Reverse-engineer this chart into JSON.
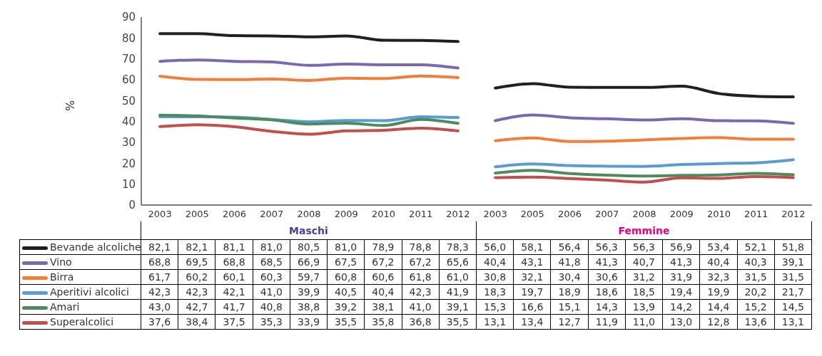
{
  "chart_data": {
    "type": "line",
    "ylabel": "%",
    "categories": [
      "2003",
      "2005",
      "2006",
      "2007",
      "2008",
      "2009",
      "2010",
      "2011",
      "2012",
      "2003",
      "2005",
      "2006",
      "2007",
      "2008",
      "2009",
      "2010",
      "2011",
      "2012"
    ],
    "annotations": [
      "Maschi",
      "Femmine"
    ],
    "ylim": [
      0,
      90
    ],
    "yticks": [
      0,
      10,
      20,
      30,
      40,
      50,
      60,
      70,
      80,
      90
    ],
    "grid": false,
    "legend": "bottom",
    "marker": "none",
    "line_style": "solid",
    "series": [
      {
        "name": "Bevande alcoliche",
        "color": "#231f20",
        "values": [
          82.1,
          82.1,
          81.1,
          81.0,
          80.5,
          81.0,
          78.9,
          78.8,
          78.3,
          56.0,
          58.1,
          56.4,
          56.3,
          56.3,
          56.9,
          53.4,
          52.1,
          51.8
        ],
        "value_labels": [
          "82,1",
          "82,1",
          "81,1",
          "81,0",
          "80,5",
          "81,0",
          "78,9",
          "78,8",
          "78,3",
          "56,0",
          "58,1",
          "56,4",
          "56,3",
          "56,3",
          "56,9",
          "53,4",
          "52,1",
          "51,8"
        ]
      },
      {
        "name": "Vino",
        "color": "#7b68b0",
        "values": [
          68.8,
          69.5,
          68.8,
          68.5,
          66.9,
          67.5,
          67.2,
          67.2,
          65.6,
          40.4,
          43.1,
          41.8,
          41.3,
          40.7,
          41.3,
          40.4,
          40.3,
          39.1
        ],
        "value_labels": [
          "68,8",
          "69,5",
          "68,8",
          "68,5",
          "66,9",
          "67,5",
          "67,2",
          "67,2",
          "65,6",
          "40,4",
          "43,1",
          "41,8",
          "41,3",
          "40,7",
          "41,3",
          "40,4",
          "40,3",
          "39,1"
        ]
      },
      {
        "name": "Birra",
        "color": "#f07f3c",
        "values": [
          61.7,
          60.2,
          60.1,
          60.3,
          59.7,
          60.8,
          60.6,
          61.8,
          61.0,
          30.8,
          32.1,
          30.4,
          30.6,
          31.2,
          31.9,
          32.3,
          31.5,
          31.5
        ],
        "value_labels": [
          "61,7",
          "60,2",
          "60,1",
          "60,3",
          "59,7",
          "60,8",
          "60,6",
          "61,8",
          "61,0",
          "30,8",
          "32,1",
          "30,4",
          "30,6",
          "31,2",
          "31,9",
          "32,3",
          "31,5",
          "31,5"
        ]
      },
      {
        "name": "Aperitivi alcolici",
        "color": "#5b9bd5",
        "values": [
          42.3,
          42.3,
          42.1,
          41.0,
          39.9,
          40.5,
          40.4,
          42.3,
          41.9,
          18.3,
          19.7,
          18.9,
          18.6,
          18.5,
          19.4,
          19.9,
          20.2,
          21.7
        ],
        "value_labels": [
          "42,3",
          "42,3",
          "42,1",
          "41,0",
          "39,9",
          "40,5",
          "40,4",
          "42,3",
          "41,9",
          "18,3",
          "19,7",
          "18,9",
          "18,6",
          "18,5",
          "19,4",
          "19,9",
          "20,2",
          "21,7"
        ]
      },
      {
        "name": "Amari",
        "color": "#4e8a5e",
        "values": [
          43.0,
          42.7,
          41.7,
          40.8,
          38.8,
          39.2,
          38.1,
          41.0,
          39.1,
          15.3,
          16.6,
          15.1,
          14.3,
          13.9,
          14.2,
          14.4,
          15.2,
          14.5
        ],
        "value_labels": [
          "43,0",
          "42,7",
          "41,7",
          "40,8",
          "38,8",
          "39,2",
          "38,1",
          "41,0",
          "39,1",
          "15,3",
          "16,6",
          "15,1",
          "14,3",
          "13,9",
          "14,2",
          "14,4",
          "15,2",
          "14,5"
        ]
      },
      {
        "name": "Superalcolici",
        "color": "#c0504d",
        "values": [
          37.6,
          38.4,
          37.5,
          35.3,
          33.9,
          35.5,
          35.8,
          36.8,
          35.5,
          13.1,
          13.4,
          12.7,
          11.9,
          11.0,
          13.0,
          12.8,
          13.6,
          13.1
        ],
        "value_labels": [
          "37,6",
          "38,4",
          "37,5",
          "35,3",
          "33,9",
          "35,5",
          "35,8",
          "36,8",
          "35,5",
          "13,1",
          "13,4",
          "12,7",
          "11,9",
          "11,0",
          "13,0",
          "12,8",
          "13,6",
          "13,1"
        ]
      }
    ]
  }
}
